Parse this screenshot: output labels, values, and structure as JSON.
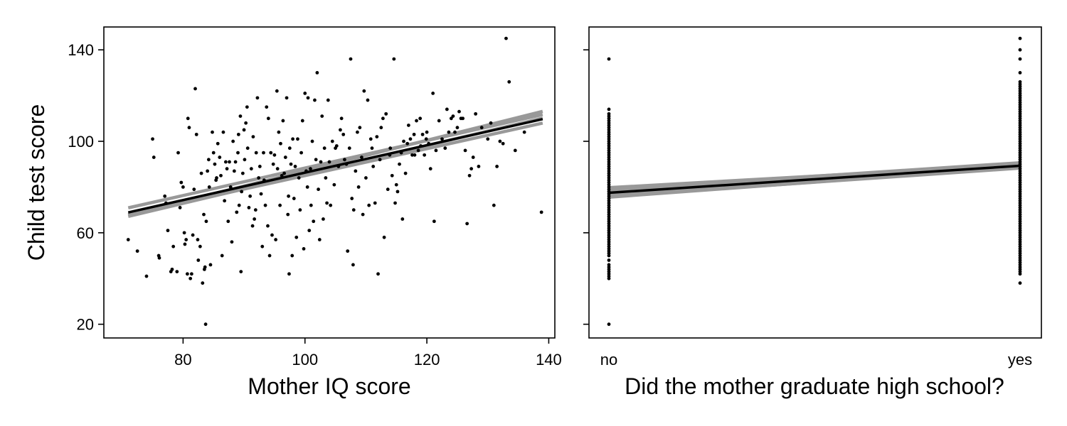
{
  "chart_data": [
    {
      "type": "scatter",
      "xlabel": "Mother IQ score",
      "ylabel": "Child test score",
      "xlim": [
        67,
        141
      ],
      "ylim": [
        14,
        150
      ],
      "xticks": [
        "80",
        "100",
        "120",
        "140"
      ],
      "yticks": [
        "20",
        "60",
        "100",
        "140"
      ],
      "grid": false,
      "legend": "none",
      "colors": {
        "points": "#000000",
        "fit": "#000000",
        "draws": "#999999"
      },
      "points": [
        [
          71,
          57
        ],
        [
          72.5,
          52
        ],
        [
          74,
          41
        ],
        [
          75,
          101
        ],
        [
          75.2,
          93
        ],
        [
          76,
          50
        ],
        [
          76.1,
          49
        ],
        [
          77,
          76
        ],
        [
          77.2,
          73
        ],
        [
          77.5,
          61
        ],
        [
          78,
          43
        ],
        [
          78.2,
          44
        ],
        [
          78.4,
          54
        ],
        [
          79,
          43
        ],
        [
          79.2,
          95
        ],
        [
          79.5,
          71
        ],
        [
          79.7,
          82
        ],
        [
          80,
          80
        ],
        [
          80.2,
          60
        ],
        [
          80.3,
          55
        ],
        [
          80.5,
          57
        ],
        [
          80.7,
          42
        ],
        [
          80.8,
          110
        ],
        [
          81,
          106
        ],
        [
          81.2,
          40
        ],
        [
          81.4,
          42
        ],
        [
          81.6,
          59
        ],
        [
          81.8,
          79
        ],
        [
          82,
          123
        ],
        [
          82.2,
          103
        ],
        [
          82.4,
          57
        ],
        [
          82.5,
          48
        ],
        [
          82.8,
          54
        ],
        [
          83,
          86
        ],
        [
          83.2,
          38
        ],
        [
          83.4,
          68
        ],
        [
          83.5,
          44
        ],
        [
          83.6,
          45
        ],
        [
          83.7,
          20
        ],
        [
          83.8,
          65
        ],
        [
          84,
          87
        ],
        [
          84.2,
          92
        ],
        [
          84.3,
          80
        ],
        [
          84.5,
          46
        ],
        [
          84.8,
          104
        ],
        [
          85,
          95
        ],
        [
          85.2,
          90
        ],
        [
          85.4,
          83
        ],
        [
          85.5,
          84
        ],
        [
          85.7,
          99
        ],
        [
          86,
          93
        ],
        [
          86.2,
          85
        ],
        [
          86.4,
          50
        ],
        [
          86.6,
          104
        ],
        [
          86.8,
          74
        ],
        [
          87,
          91
        ],
        [
          87.2,
          88
        ],
        [
          87.4,
          65
        ],
        [
          87.6,
          91
        ],
        [
          87.8,
          80
        ],
        [
          88,
          56
        ],
        [
          88.2,
          100
        ],
        [
          88.4,
          87
        ],
        [
          88.6,
          91
        ],
        [
          88.8,
          69
        ],
        [
          89,
          95
        ],
        [
          89.1,
          103
        ],
        [
          89.2,
          72
        ],
        [
          89.4,
          111
        ],
        [
          89.5,
          43
        ],
        [
          89.6,
          78
        ],
        [
          89.8,
          86
        ],
        [
          90,
          105
        ],
        [
          90.1,
          92
        ],
        [
          90.3,
          108
        ],
        [
          90.5,
          115
        ],
        [
          90.6,
          97
        ],
        [
          90.8,
          71
        ],
        [
          91,
          76
        ],
        [
          91.2,
          88
        ],
        [
          91.4,
          63
        ],
        [
          91.5,
          102
        ],
        [
          91.7,
          66
        ],
        [
          91.9,
          70
        ],
        [
          92,
          95
        ],
        [
          92.2,
          119
        ],
        [
          92.4,
          84
        ],
        [
          92.6,
          89
        ],
        [
          92.8,
          77
        ],
        [
          93,
          54
        ],
        [
          93.2,
          95
        ],
        [
          93.3,
          83
        ],
        [
          93.5,
          72
        ],
        [
          93.7,
          115
        ],
        [
          93.9,
          63
        ],
        [
          94,
          110
        ],
        [
          94.2,
          50
        ],
        [
          94.4,
          95
        ],
        [
          94.6,
          59
        ],
        [
          94.8,
          90
        ],
        [
          95,
          94
        ],
        [
          95.2,
          57
        ],
        [
          95.4,
          122
        ],
        [
          95.5,
          88
        ],
        [
          95.7,
          104
        ],
        [
          95.9,
          72
        ],
        [
          96,
          99
        ],
        [
          96.2,
          85
        ],
        [
          96.4,
          109
        ],
        [
          96.6,
          86
        ],
        [
          96.8,
          93
        ],
        [
          97,
          119
        ],
        [
          97.2,
          68
        ],
        [
          97.3,
          76
        ],
        [
          97.4,
          42
        ],
        [
          97.5,
          97
        ],
        [
          97.7,
          90
        ],
        [
          97.9,
          50
        ],
        [
          98,
          101
        ],
        [
          98.2,
          75
        ],
        [
          98.4,
          89
        ],
        [
          98.6,
          58
        ],
        [
          98.8,
          101
        ],
        [
          99,
          84
        ],
        [
          99.2,
          70
        ],
        [
          99.4,
          95
        ],
        [
          99.6,
          109
        ],
        [
          99.8,
          53
        ],
        [
          100,
          121
        ],
        [
          100.2,
          87
        ],
        [
          100.4,
          80
        ],
        [
          100.5,
          119
        ],
        [
          100.7,
          61
        ],
        [
          100.9,
          88
        ],
        [
          101,
          72
        ],
        [
          101.2,
          100
        ],
        [
          101.4,
          65
        ],
        [
          101.6,
          118
        ],
        [
          101.8,
          92
        ],
        [
          102,
          130
        ],
        [
          102.2,
          79
        ],
        [
          102.4,
          57
        ],
        [
          102.6,
          91
        ],
        [
          102.8,
          111
        ],
        [
          103,
          66
        ],
        [
          103.2,
          97
        ],
        [
          103.4,
          84
        ],
        [
          103.6,
          73
        ],
        [
          103.8,
          118
        ],
        [
          104,
          91
        ],
        [
          104.2,
          72
        ],
        [
          104.5,
          100
        ],
        [
          104.8,
          81
        ],
        [
          105,
          97
        ],
        [
          105.2,
          98
        ],
        [
          105.5,
          89
        ],
        [
          105.8,
          105
        ],
        [
          106,
          110
        ],
        [
          106.3,
          103
        ],
        [
          106.5,
          92
        ],
        [
          106.8,
          90
        ],
        [
          107,
          52
        ],
        [
          107.3,
          97
        ],
        [
          107.5,
          136
        ],
        [
          107.7,
          75
        ],
        [
          107.9,
          46
        ],
        [
          108,
          70
        ],
        [
          108.3,
          87
        ],
        [
          108.6,
          104
        ],
        [
          108.8,
          80
        ],
        [
          109,
          106
        ],
        [
          109.3,
          93
        ],
        [
          109.5,
          68
        ],
        [
          109.7,
          122
        ],
        [
          110,
          84
        ],
        [
          110.3,
          118
        ],
        [
          110.5,
          72
        ],
        [
          110.8,
          101
        ],
        [
          111,
          97
        ],
        [
          111.2,
          89
        ],
        [
          111.5,
          73
        ],
        [
          111.8,
          102
        ],
        [
          112,
          42
        ],
        [
          112.3,
          92
        ],
        [
          112.5,
          106
        ],
        [
          112.8,
          110
        ],
        [
          113,
          58
        ],
        [
          113.3,
          112
        ],
        [
          113.6,
          79
        ],
        [
          113.9,
          94
        ],
        [
          114,
          97
        ],
        [
          114.3,
          85
        ],
        [
          114.6,
          136
        ],
        [
          114.8,
          73
        ],
        [
          115,
          81
        ],
        [
          115.2,
          78
        ],
        [
          115.5,
          90
        ],
        [
          115.8,
          95
        ],
        [
          116,
          66
        ],
        [
          116.2,
          100
        ],
        [
          116.5,
          86
        ],
        [
          116.8,
          99
        ],
        [
          117,
          107
        ],
        [
          117.3,
          101
        ],
        [
          117.6,
          94
        ],
        [
          117.9,
          103
        ],
        [
          118,
          94
        ],
        [
          118.3,
          109
        ],
        [
          118.6,
          96
        ],
        [
          118.9,
          110
        ],
        [
          119,
          98
        ],
        [
          119.3,
          103
        ],
        [
          119.6,
          94
        ],
        [
          119.9,
          101
        ],
        [
          120,
          104
        ],
        [
          120.3,
          99
        ],
        [
          120.6,
          88
        ],
        [
          121,
          121
        ],
        [
          121.2,
          65
        ],
        [
          121.5,
          96
        ],
        [
          122,
          109
        ],
        [
          122.5,
          101
        ],
        [
          123,
          97
        ],
        [
          123.3,
          114
        ],
        [
          123.6,
          104
        ],
        [
          124,
          110
        ],
        [
          124.3,
          111
        ],
        [
          124.6,
          104
        ],
        [
          125,
          106
        ],
        [
          125.3,
          113
        ],
        [
          125.6,
          110
        ],
        [
          125.9,
          110
        ],
        [
          126.3,
          96
        ],
        [
          126.6,
          64
        ],
        [
          127,
          85
        ],
        [
          127.3,
          88
        ],
        [
          127.6,
          93
        ],
        [
          128,
          112
        ],
        [
          128.5,
          89
        ],
        [
          129,
          106
        ],
        [
          130,
          101
        ],
        [
          130.5,
          108
        ],
        [
          131,
          72
        ],
        [
          131.5,
          89
        ],
        [
          132,
          100
        ],
        [
          132.5,
          99
        ],
        [
          133,
          145
        ],
        [
          133.5,
          126
        ],
        [
          134.5,
          96
        ],
        [
          136,
          104
        ],
        [
          138.8,
          69
        ]
      ],
      "fit": {
        "intercept": 26.3,
        "slope": 0.6
      },
      "draws": [
        {
          "intercept": 28.3,
          "slope": 0.6
        },
        {
          "intercept": 20.4,
          "slope": 0.667
        },
        {
          "intercept": 22.3,
          "slope": 0.632
        },
        {
          "intercept": 26.1,
          "slope": 0.589
        }
      ]
    },
    {
      "type": "scatter",
      "xlabel": "Did the mother graduate high school?",
      "ylim": [
        14,
        150
      ],
      "xticks": [
        "no",
        "yes"
      ],
      "yticks": [
        "20",
        "60",
        "100",
        "140"
      ],
      "grid": false,
      "legend": "none",
      "colors": {
        "points": "#000000",
        "fit": "#000000",
        "draws": "#999999"
      },
      "no_values": [
        20,
        40,
        41,
        42,
        43,
        44,
        45,
        46,
        48,
        50,
        51,
        52,
        53,
        54,
        55,
        56,
        57,
        58,
        59,
        60,
        61,
        62,
        63,
        64,
        65,
        66,
        67,
        68,
        69,
        70,
        71,
        72,
        73,
        74,
        75,
        76,
        77,
        78,
        79,
        80,
        81,
        82,
        83,
        84,
        85,
        86,
        87,
        88,
        89,
        90,
        91,
        92,
        93,
        94,
        95,
        96,
        97,
        98,
        99,
        100,
        101,
        102,
        103,
        104,
        105,
        106,
        107,
        108,
        109,
        110,
        111,
        112,
        114,
        136
      ],
      "yes_values": [
        38,
        42,
        43,
        44,
        45,
        46,
        47,
        48,
        49,
        50,
        51,
        52,
        53,
        54,
        55,
        56,
        57,
        58,
        59,
        60,
        61,
        62,
        63,
        64,
        65,
        66,
        67,
        68,
        69,
        70,
        71,
        72,
        73,
        74,
        75,
        76,
        77,
        78,
        79,
        80,
        81,
        82,
        83,
        84,
        85,
        86,
        87,
        88,
        89,
        90,
        91,
        92,
        93,
        94,
        95,
        96,
        97,
        98,
        99,
        100,
        101,
        102,
        103,
        104,
        105,
        106,
        107,
        108,
        109,
        110,
        111,
        112,
        113,
        114,
        115,
        116,
        117,
        118,
        119,
        120,
        121,
        122,
        123,
        124,
        125,
        126,
        130,
        136,
        140,
        145
      ],
      "fit": {
        "no": 77.5,
        "yes": 89.3
      },
      "draws": [
        {
          "no": 79.5,
          "yes": 89.6
        },
        {
          "no": 76.2,
          "yes": 88.5
        },
        {
          "no": 78.6,
          "yes": 90.4
        },
        {
          "no": 75.8,
          "yes": 89.0
        }
      ]
    }
  ]
}
